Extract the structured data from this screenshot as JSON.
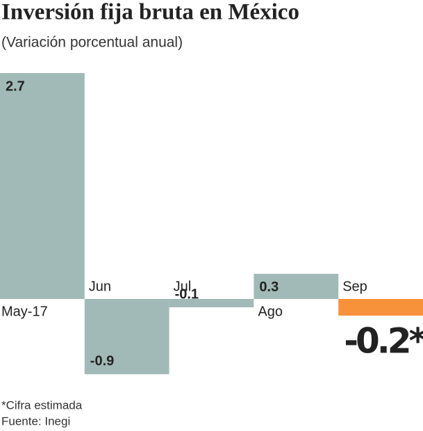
{
  "chart_data": {
    "type": "bar",
    "title": "Inversión fija bruta en México",
    "subtitle": "(Variación porcentual anual)",
    "categories": [
      "May-17",
      "Jun",
      "Jul",
      "Ago",
      "Sep"
    ],
    "values": [
      2.7,
      -0.9,
      -0.1,
      0.3,
      -0.2
    ],
    "value_labels": [
      "2.7",
      "-0.9",
      "-0.1",
      "0.3",
      "-0.2*"
    ],
    "colors": [
      "#a2bab7",
      "#a2bab7",
      "#a2bab7",
      "#a2bab7",
      "#f7923b"
    ],
    "notes": [
      "*Cifra estimada",
      "Fuente: Inegi"
    ]
  }
}
